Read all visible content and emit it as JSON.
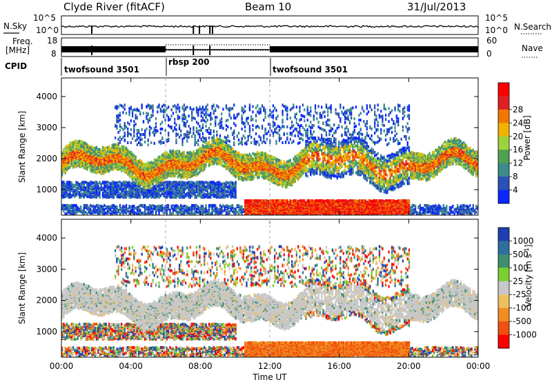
{
  "header": {
    "station": "Clyde River (fitACF)",
    "beam": "Beam 10",
    "date": "31/Jul/2013"
  },
  "noise_panel": {
    "left_label": "N.Sky",
    "right_label": "N.Search",
    "y_ticks_left": [
      "10^5",
      "10^0"
    ],
    "y_ticks_right": [
      "10^5",
      "10^0"
    ]
  },
  "freq_panel": {
    "left_label_1": "Freq.",
    "left_label_2": "[MHz]",
    "right_label": "Nave",
    "y_ticks_left": [
      "18",
      "8"
    ],
    "y_ticks_right": [
      "60",
      "0"
    ]
  },
  "cpid": {
    "label": "CPID",
    "segments": [
      {
        "name": "twofsound 3501",
        "start_h": 0,
        "end_h": 6
      },
      {
        "name": "rbsp 200",
        "start_h": 6,
        "end_h": 12
      },
      {
        "name": "twofsound 3501",
        "start_h": 12,
        "end_h": 24
      }
    ]
  },
  "chart_data": [
    {
      "type": "heatmap",
      "panel": "power",
      "ylabel": "Slant Range [km]",
      "yticks": [
        1000,
        2000,
        3000,
        4000
      ],
      "ylim": [
        180,
        4600
      ],
      "xlim": [
        0,
        24
      ],
      "colorbar": {
        "label": "Power [dB]",
        "ticks": [
          "4",
          "8",
          "12",
          "16",
          "20",
          "24",
          "28"
        ],
        "colors": [
          "#0a28ff",
          "#2c4fb8",
          "#3c8a8a",
          "#50a050",
          "#9ed23c",
          "#f0b400",
          "#f07800",
          "#e02020",
          "#ff0000"
        ]
      }
    },
    {
      "type": "heatmap",
      "panel": "velocity",
      "ylabel": "Slant Range [km]",
      "yticks": [
        1000,
        2000,
        3000,
        4000
      ],
      "ylim": [
        180,
        4600
      ],
      "xlim": [
        0,
        24
      ],
      "xlabel": "Time UT",
      "xticks": [
        "00:00",
        "04:00",
        "08:00",
        "12:00",
        "16:00",
        "20:00",
        "00:00"
      ],
      "colorbar": {
        "label": "Velocity [m s^-1]",
        "ticks": [
          "1000",
          "500",
          "100",
          "25",
          "-25",
          "-100",
          "-500",
          "-1000"
        ],
        "colors": [
          "#1f3fb0",
          "#2f6f9f",
          "#3f8f6f",
          "#7ad030",
          "#c8c8c8",
          "#f0c060",
          "#f08c20",
          "#f05010",
          "#ff0000"
        ]
      }
    }
  ]
}
